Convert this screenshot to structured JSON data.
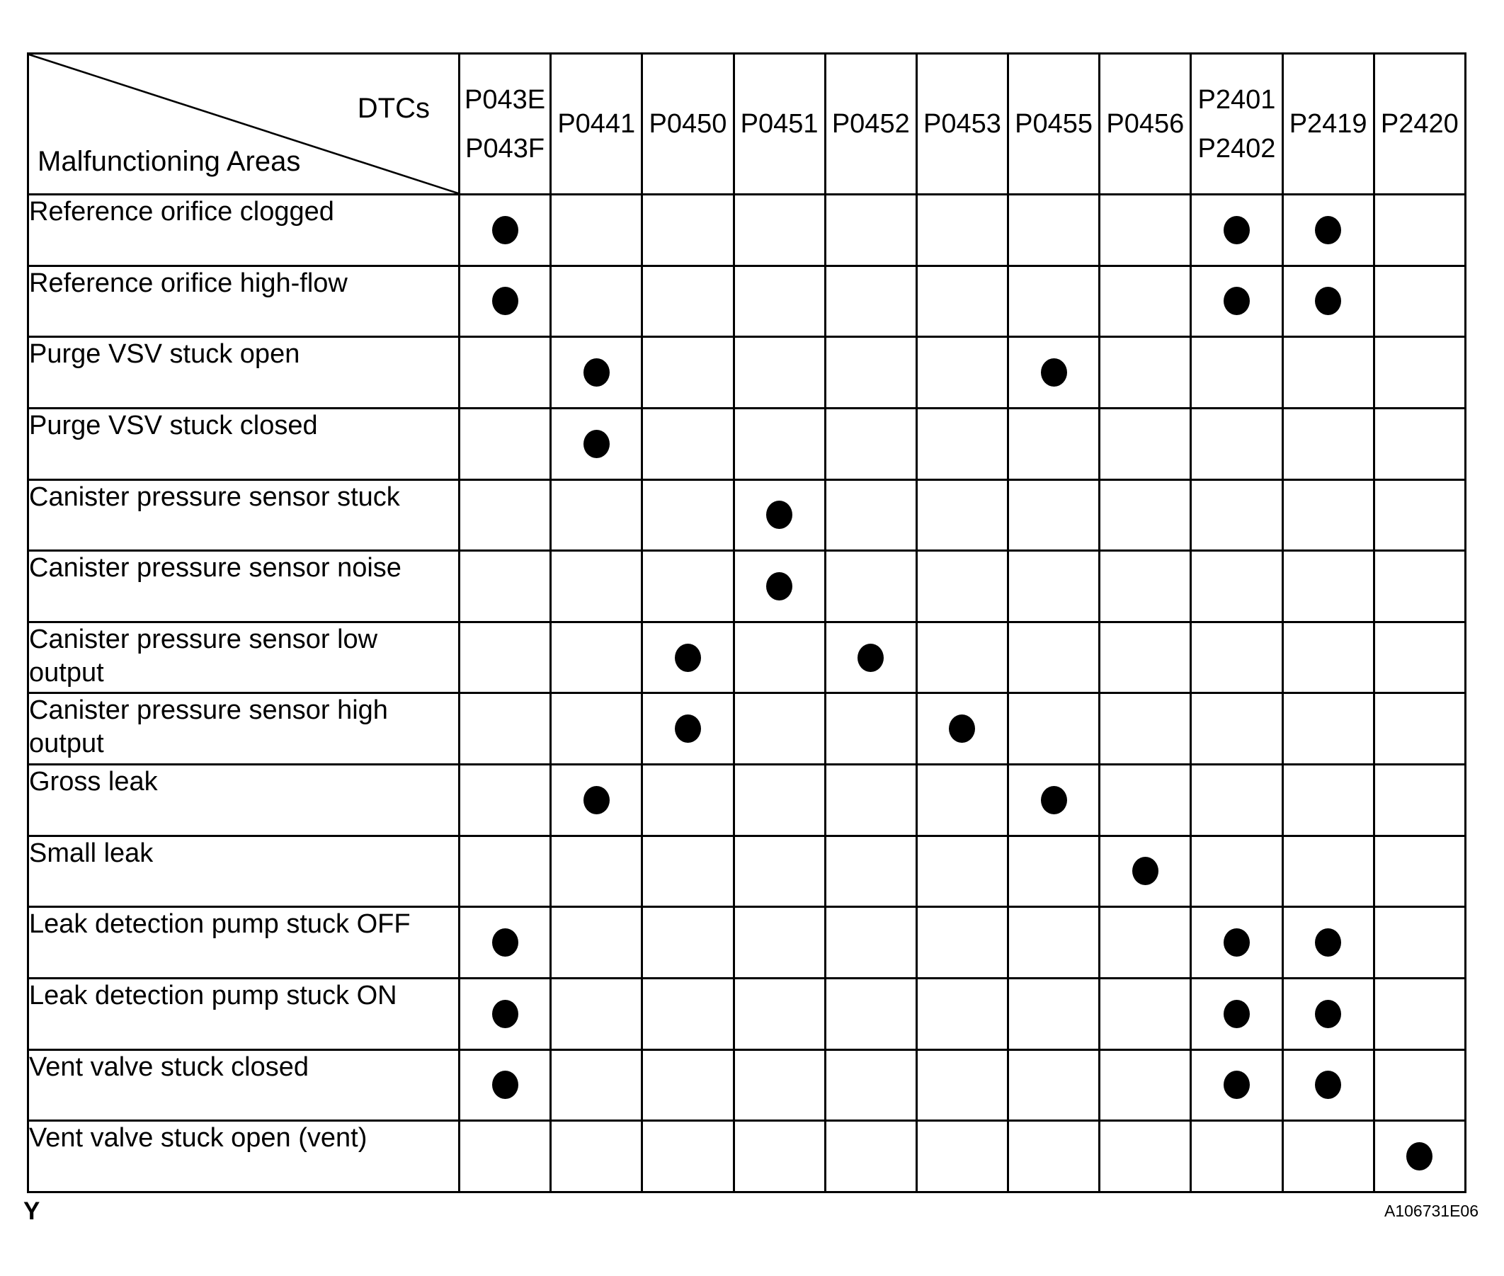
{
  "figure": {
    "corner_label": "Y",
    "figure_id": "A106731E06"
  },
  "table": {
    "axis_labels": {
      "columns": "DTCs",
      "rows": "Malfunctioning Areas"
    },
    "columns": [
      {
        "codes": [
          "P043E",
          "P043F"
        ]
      },
      {
        "codes": [
          "P0441"
        ]
      },
      {
        "codes": [
          "P0450"
        ]
      },
      {
        "codes": [
          "P0451"
        ]
      },
      {
        "codes": [
          "P0452"
        ]
      },
      {
        "codes": [
          "P0453"
        ]
      },
      {
        "codes": [
          "P0455"
        ]
      },
      {
        "codes": [
          "P0456"
        ]
      },
      {
        "codes": [
          "P2401",
          "P2402"
        ]
      },
      {
        "codes": [
          "P2419"
        ]
      },
      {
        "codes": [
          "P2420"
        ]
      }
    ],
    "rows": [
      {
        "label": "Reference orifice clogged",
        "marked": [
          "P043E/P043F",
          "P2401/P2402",
          "P2419"
        ]
      },
      {
        "label": "Reference orifice high-flow",
        "marked": [
          "P043E/P043F",
          "P2401/P2402",
          "P2419"
        ]
      },
      {
        "label": "Purge VSV stuck open",
        "marked": [
          "P0441",
          "P0455"
        ]
      },
      {
        "label": "Purge VSV stuck closed",
        "marked": [
          "P0441"
        ]
      },
      {
        "label": "Canister pressure sensor stuck",
        "marked": [
          "P0451"
        ]
      },
      {
        "label": "Canister pressure sensor noise",
        "marked": [
          "P0451"
        ]
      },
      {
        "label": "Canister pressure sensor low output",
        "marked": [
          "P0450",
          "P0452"
        ]
      },
      {
        "label": "Canister pressure sensor high output",
        "marked": [
          "P0450",
          "P0453"
        ]
      },
      {
        "label": "Gross leak",
        "marked": [
          "P0441",
          "P0455"
        ]
      },
      {
        "label": "Small leak",
        "marked": [
          "P0456"
        ]
      },
      {
        "label": "Leak detection pump stuck OFF",
        "marked": [
          "P043E/P043F",
          "P2401/P2402",
          "P2419"
        ]
      },
      {
        "label": "Leak detection pump stuck ON",
        "marked": [
          "P043E/P043F",
          "P2401/P2402",
          "P2419"
        ]
      },
      {
        "label": "Vent valve stuck closed",
        "marked": [
          "P043E/P043F",
          "P2401/P2402",
          "P2419"
        ]
      },
      {
        "label": "Vent valve stuck open (vent)",
        "marked": [
          "P2420"
        ]
      }
    ]
  }
}
